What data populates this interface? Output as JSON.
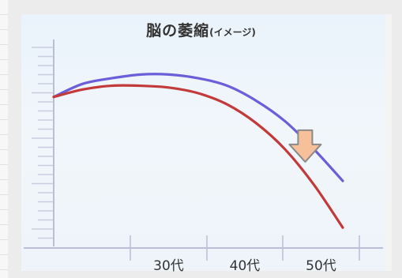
{
  "chart_data": {
    "type": "line",
    "title": "脳の萎縮",
    "subtitle": "(イメージ)",
    "categories": [
      "30代",
      "40代",
      "50代"
    ],
    "xlabel": "",
    "ylabel": "",
    "series": [
      {
        "color": "#6a5fd9",
        "x": [
          0,
          10,
          20,
          30,
          40,
          50,
          60,
          70,
          80,
          90,
          100
        ],
        "y": [
          55,
          62,
          65,
          67,
          67,
          65,
          61,
          53,
          42,
          27,
          10
        ]
      },
      {
        "color": "#c23a3a",
        "x": [
          0,
          10,
          20,
          30,
          40,
          50,
          60,
          70,
          80,
          90,
          100
        ],
        "y": [
          55,
          59,
          61,
          61,
          60,
          57,
          51,
          41,
          27,
          8,
          -15
        ]
      }
    ],
    "annotation": {
      "type": "arrow-down",
      "color": "#f6c09a",
      "x": 87,
      "y": 27
    },
    "grid": false,
    "legend": "none"
  }
}
